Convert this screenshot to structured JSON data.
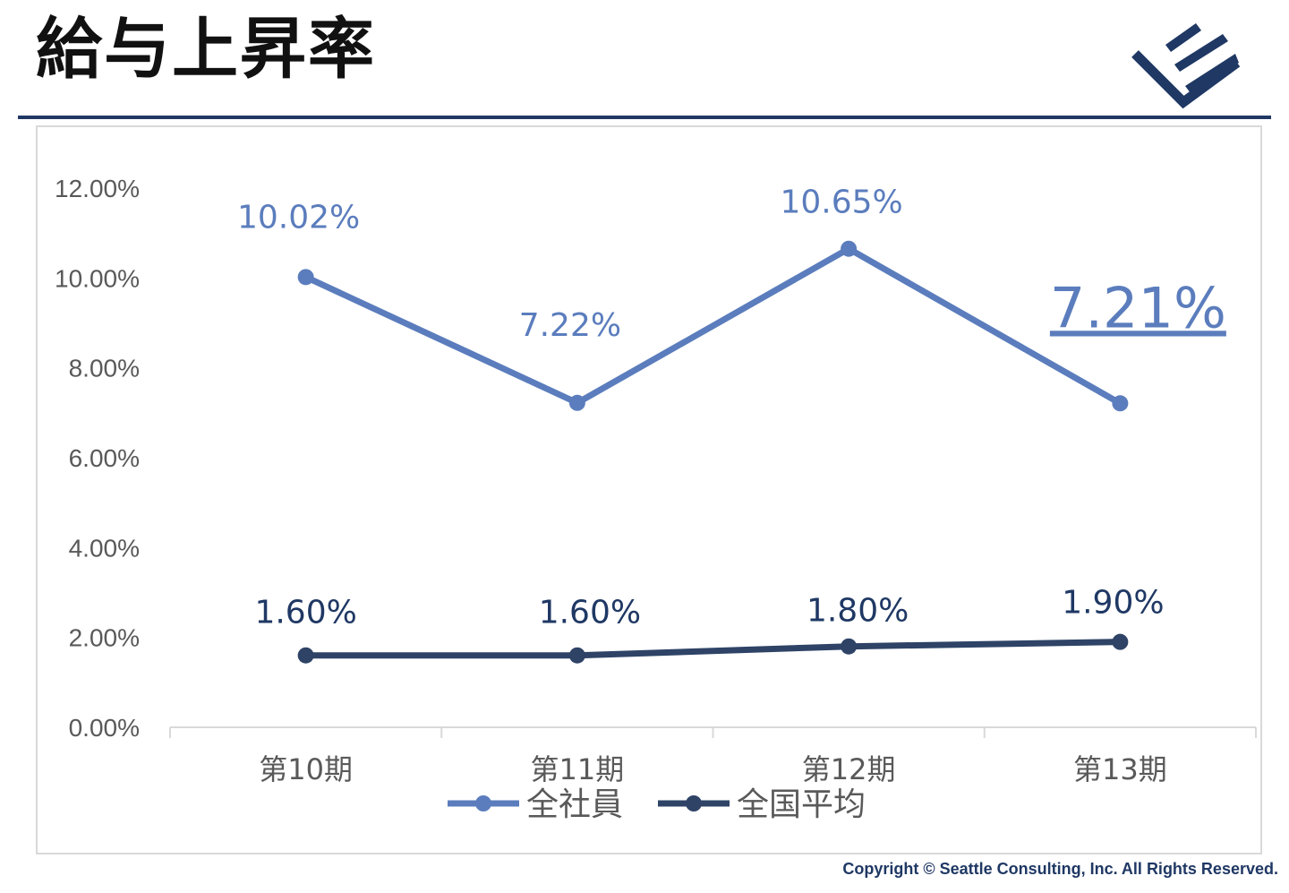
{
  "header": {
    "title": "給与上昇率",
    "copyright": "Copyright © Seattle Consulting, Inc. All Rights Reserved."
  },
  "logo": {
    "icon": "seattle-consulting-logo",
    "color": "#1f3864"
  },
  "chart_data": {
    "type": "line",
    "title": "",
    "xlabel": "",
    "ylabel": "",
    "categories": [
      "第10期",
      "第11期",
      "第12期",
      "第13期"
    ],
    "ylim": [
      0,
      12
    ],
    "yticks": [
      "0.00%",
      "2.00%",
      "4.00%",
      "6.00%",
      "8.00%",
      "10.00%",
      "12.00%"
    ],
    "grid": false,
    "legend_position": "bottom",
    "series": [
      {
        "name": "全社員",
        "values": [
          10.02,
          7.22,
          10.65,
          7.21
        ],
        "labels": [
          "10.02%",
          "7.22%",
          "10.65%",
          "7.21%"
        ],
        "color": "#5b7dbd",
        "label_color": "#5b7dbd"
      },
      {
        "name": "全国平均",
        "values": [
          1.6,
          1.6,
          1.8,
          1.9
        ],
        "labels": [
          "1.60%",
          "1.60%",
          "1.80%",
          "1.90%"
        ],
        "color": "#2e4366",
        "label_color": "#1f3864"
      }
    ]
  }
}
